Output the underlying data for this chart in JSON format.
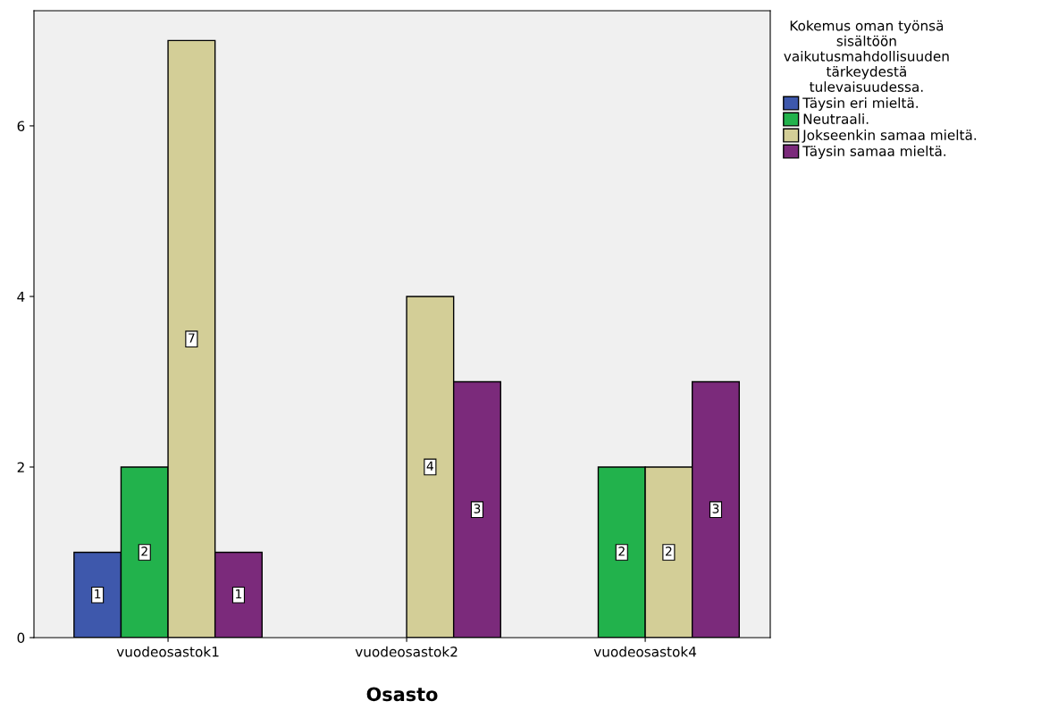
{
  "chart_data": {
    "type": "bar",
    "xlabel": "Osasto",
    "legend_title": "Kokemus oman työnsä\nsisältöön\nvaikutusmahdollisuuden\ntärkeydestä\ntulevaisuudessa.",
    "categories": [
      "vuodeosastok1",
      "vuodeosastok2",
      "vuodeosastok4"
    ],
    "series": [
      {
        "name": "Täysin eri mieltä.",
        "color": "#3e58ac",
        "values": [
          1,
          null,
          null
        ]
      },
      {
        "name": "Neutraali.",
        "color": "#22b24c",
        "values": [
          2,
          null,
          2
        ]
      },
      {
        "name": "Jokseenkin samaa mieltä.",
        "color": "#d3ce97",
        "values": [
          7,
          4,
          2
        ]
      },
      {
        "name": "Täysin samaa mieltä.",
        "color": "#7b2a7b",
        "values": [
          1,
          3,
          3
        ]
      }
    ],
    "ylim": [
      0,
      7.35
    ],
    "yticks": [
      0,
      2,
      4,
      6
    ],
    "grid": false,
    "legend": "right",
    "data_labels": true
  }
}
